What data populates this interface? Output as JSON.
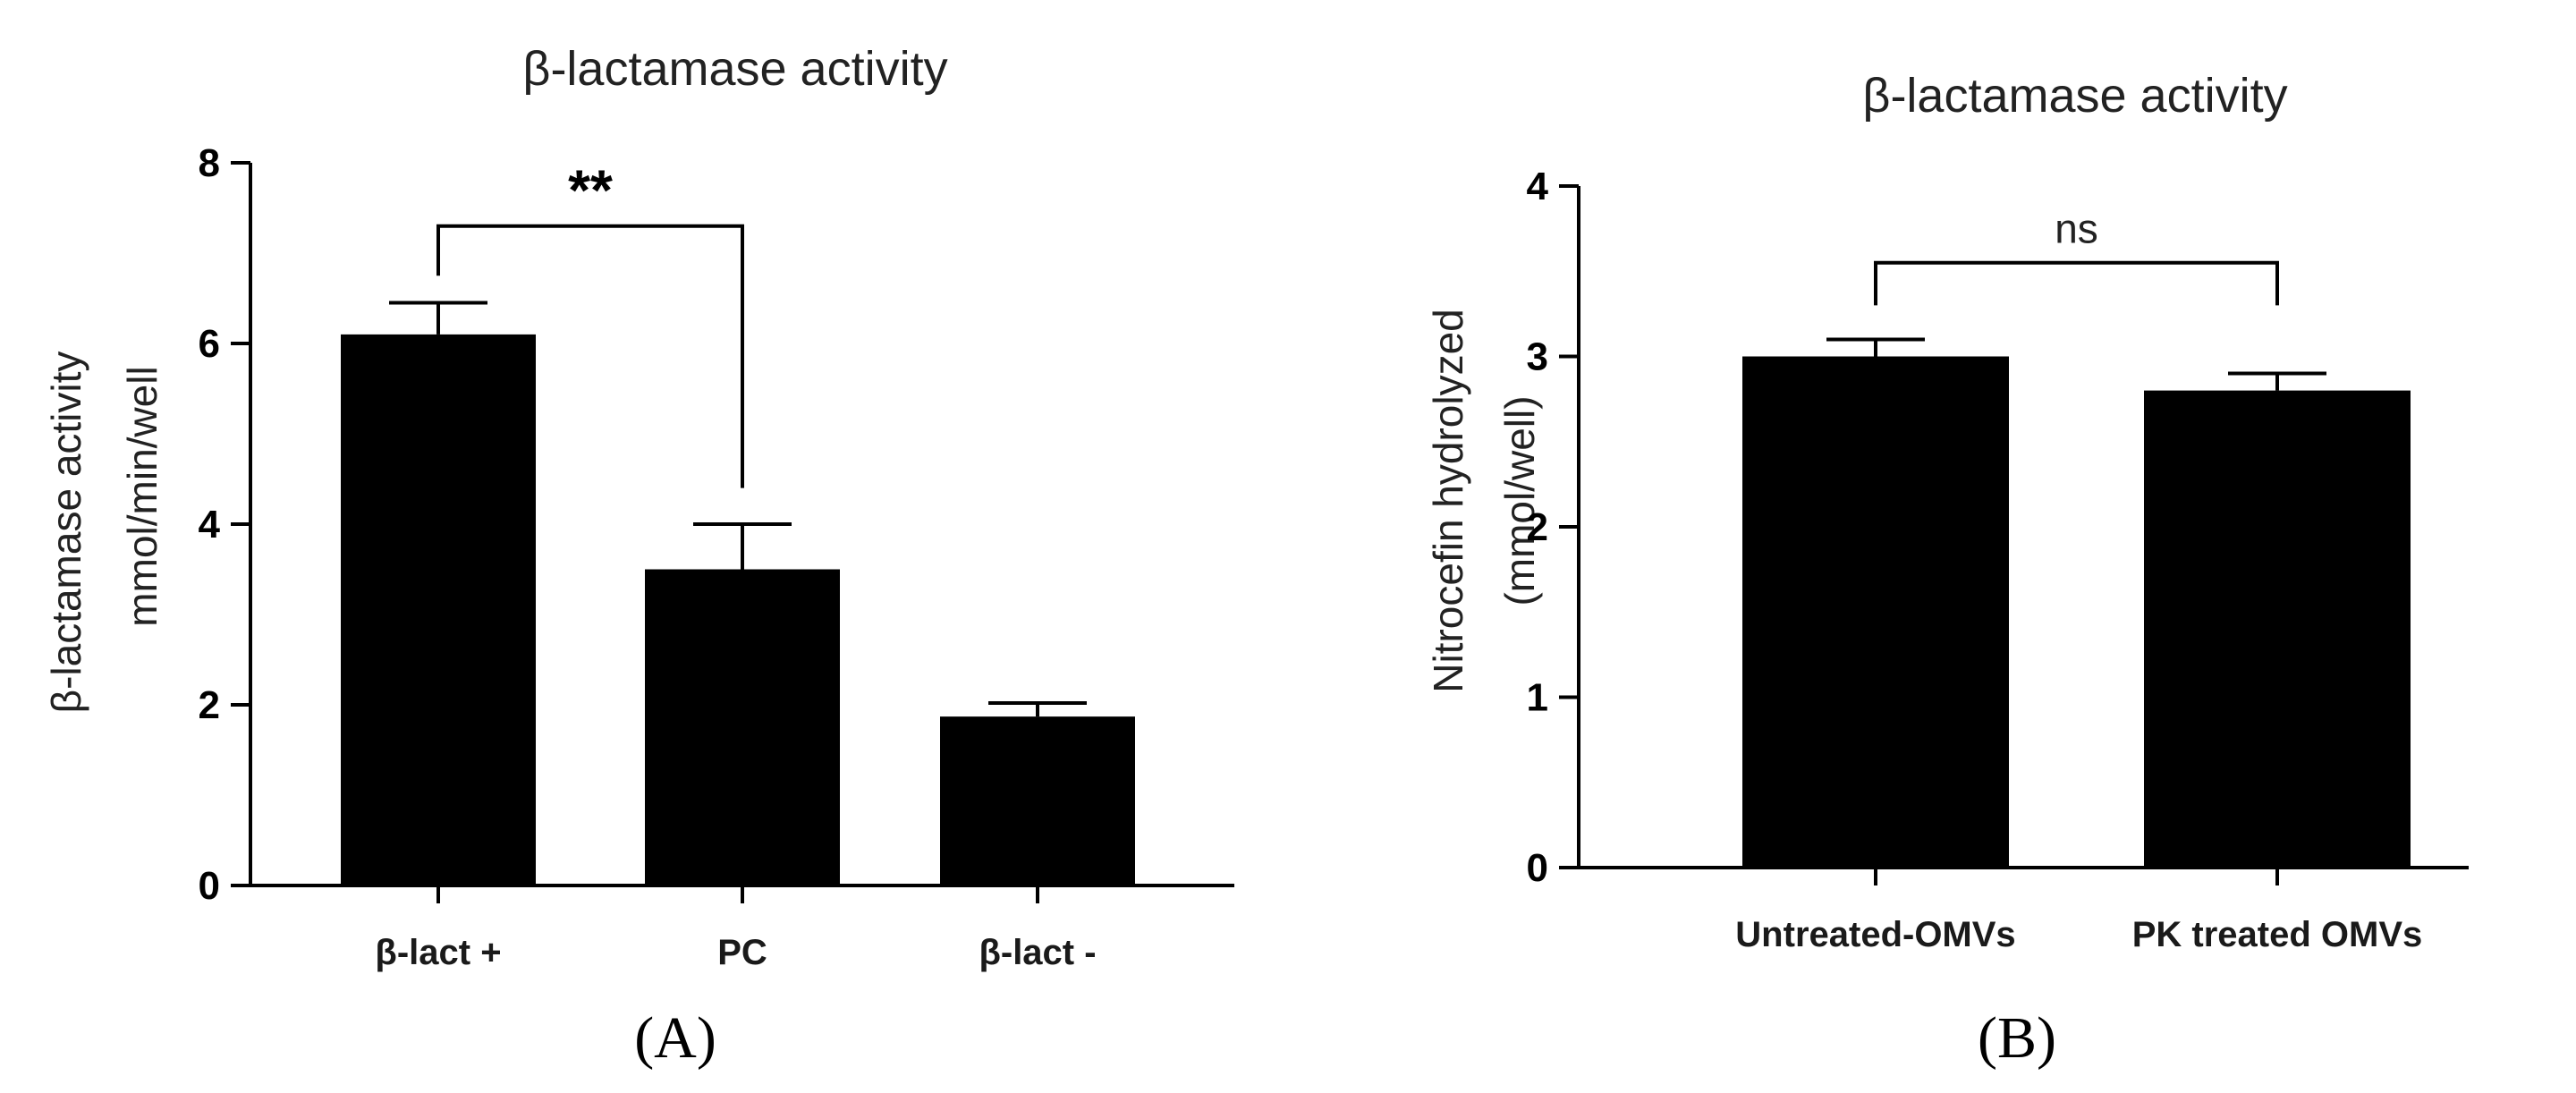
{
  "chart_data": [
    {
      "type": "bar",
      "panel_label": "(A)",
      "title": "β-lactamase activity",
      "ylabel_line1": "β-lactamase activity",
      "ylabel_line2": "mmol/min/well",
      "xlabel": "",
      "categories": [
        "β-lact +",
        "PC",
        "β-lact -"
      ],
      "values": [
        6.1,
        3.5,
        1.87
      ],
      "errors": [
        0.35,
        0.5,
        0.15
      ],
      "ylim": [
        0,
        8
      ],
      "yticks": [
        "0",
        "2",
        "4",
        "6",
        "8"
      ],
      "bar_color": "#000000",
      "significance": {
        "from": 0,
        "to": 1,
        "label": "**",
        "y_top": 7.3,
        "y_left_end": 6.75,
        "y_right_end": 4.4
      }
    },
    {
      "type": "bar",
      "panel_label": "(B)",
      "title": "β-lactamase activity",
      "ylabel_line1": "Nitrocefin hydrolyzed",
      "ylabel_line2": "(mmol/well)",
      "xlabel": "",
      "categories": [
        "Untreated-OMVs",
        "PK treated OMVs"
      ],
      "values": [
        3.0,
        2.8
      ],
      "errors": [
        0.1,
        0.1
      ],
      "ylim": [
        0,
        4
      ],
      "yticks": [
        "0",
        "1",
        "2",
        "3",
        "4"
      ],
      "bar_color": "#000000",
      "significance": {
        "from": 0,
        "to": 1,
        "label": "ns",
        "y_top": 3.55,
        "y_left_end": 3.3,
        "y_right_end": 3.3
      }
    }
  ]
}
